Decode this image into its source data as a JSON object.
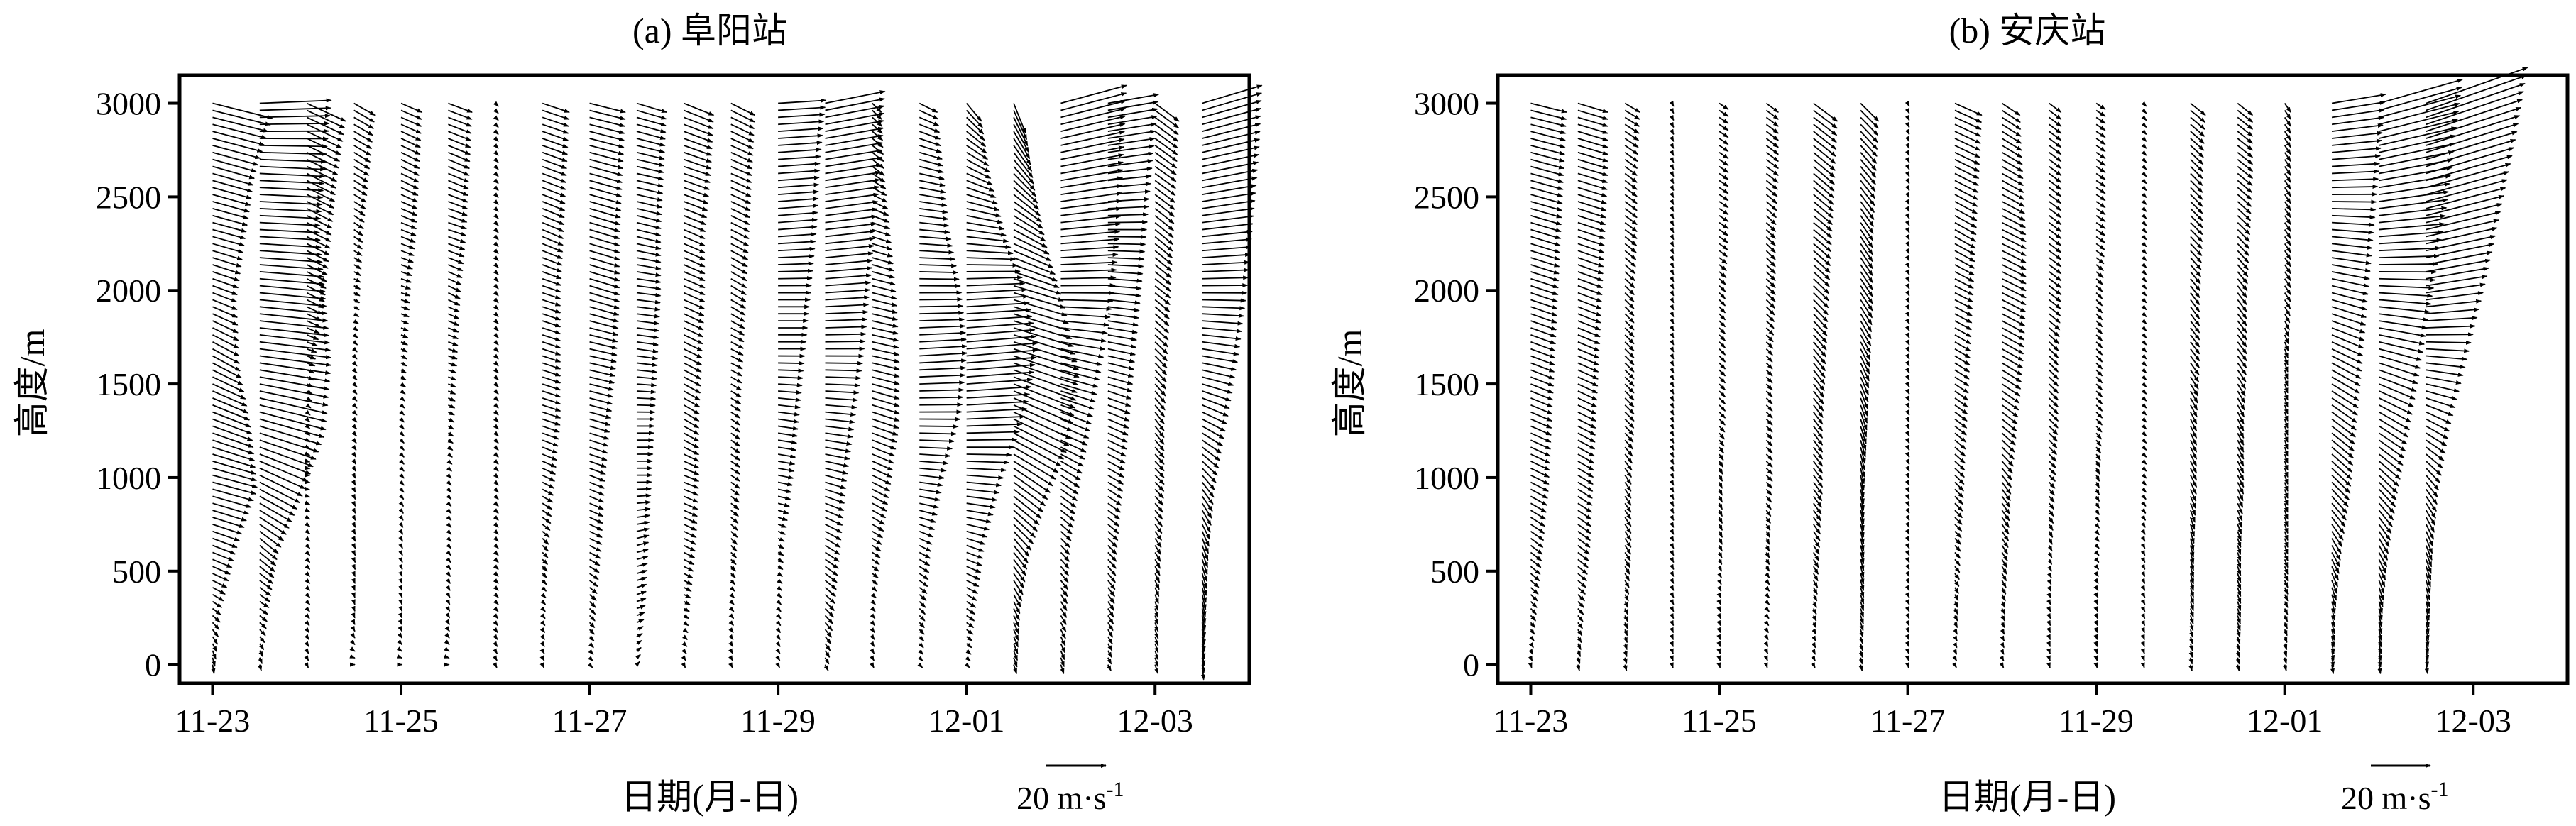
{
  "chart_data": [
    {
      "type": "wind-profile",
      "title": "(a) 阜阳站",
      "xlabel": "日期(月-日)",
      "ylabel": "高度/m",
      "ylim": [
        -100,
        3150
      ],
      "xlim": [
        -0.35,
        11.0
      ],
      "yticks": [
        0,
        500,
        1000,
        1500,
        2000,
        2500,
        3000
      ],
      "xticks": [
        "11-23",
        "11-25",
        "11-27",
        "11-29",
        "12-01",
        "12-03"
      ],
      "xtick_days": [
        0,
        2,
        4,
        6,
        8,
        10
      ],
      "grid": false,
      "reference_vector": {
        "label": "20 m·s",
        "exponent": "-1",
        "speed": 20
      },
      "profiles": [
        {
          "day": 0.0,
          "top": 3000,
          "u": [
            0.5,
            3,
            8,
            15,
            13,
            9,
            8,
            11,
            14,
            20
          ],
          "v": [
            -3,
            -2,
            -3,
            -4,
            -5,
            -5,
            -3,
            -3,
            -4,
            -5
          ]
        },
        {
          "day": 0.5,
          "top": 3000,
          "u": [
            0.5,
            3,
            6,
            14,
            22,
            24,
            22,
            20,
            22,
            24
          ],
          "v": [
            -2,
            -2,
            -5,
            -7,
            -6,
            -3,
            -2,
            -1,
            -1,
            1
          ]
        },
        {
          "day": 1.0,
          "top": 3000,
          "u": [
            0.5,
            1,
            1,
            1,
            1,
            3,
            6,
            8,
            10,
            13
          ],
          "v": [
            -1,
            -1,
            -1,
            0,
            -1,
            -1,
            -3,
            -4,
            -5,
            -6
          ]
        },
        {
          "day": 1.5,
          "top": 3000,
          "u": [
            0.3,
            0.3,
            0.5,
            0.5,
            1,
            1,
            2,
            3,
            5,
            7
          ],
          "v": [
            0,
            -1,
            -1,
            -1,
            -1,
            -1,
            -1,
            -2,
            -3,
            -4
          ]
        },
        {
          "day": 2.0,
          "top": 3000,
          "u": [
            0.3,
            0.3,
            0.5,
            1,
            1,
            2,
            3,
            5,
            6,
            7
          ],
          "v": [
            0,
            -1,
            -1,
            -1,
            -1,
            -1,
            -1,
            -2,
            -3,
            -3
          ]
        },
        {
          "day": 2.5,
          "top": 3000,
          "u": [
            0.3,
            0.5,
            1,
            1,
            2,
            3,
            4,
            6,
            7,
            8
          ],
          "v": [
            0,
            -1,
            -1,
            -1,
            -1,
            -1,
            -2,
            -2,
            -3,
            -3
          ]
        },
        {
          "day": 3.0,
          "top": 3000,
          "u": [
            0.5,
            1,
            1,
            1,
            1,
            1,
            1,
            1,
            1,
            1
          ],
          "v": [
            -1,
            -1,
            -1,
            -1,
            -1,
            -1,
            -1,
            -1,
            -1,
            -1
          ]
        },
        {
          "day": 3.5,
          "top": 3000,
          "u": [
            0.5,
            1,
            2,
            4,
            6,
            6,
            6,
            7,
            8,
            9
          ],
          "v": [
            -1,
            -1,
            -2,
            -2,
            -2,
            -2,
            -2,
            -3,
            -3,
            -3
          ]
        },
        {
          "day": 4.0,
          "top": 3000,
          "u": [
            1,
            2,
            4,
            5,
            7,
            9,
            10,
            10,
            11,
            12
          ],
          "v": [
            -1,
            -2,
            -2,
            -2,
            -2,
            -2,
            -3,
            -3,
            -3,
            -3
          ]
        },
        {
          "day": 4.5,
          "top": 3000,
          "u": [
            1,
            3,
            4,
            5,
            6,
            7,
            8,
            8,
            9,
            10
          ],
          "v": [
            1,
            1,
            1,
            0,
            0,
            -1,
            -1,
            -2,
            -2,
            -3
          ]
        },
        {
          "day": 5.0,
          "top": 3000,
          "u": [
            0.5,
            2,
            4,
            5,
            5,
            6,
            7,
            7,
            9,
            10
          ],
          "v": [
            -1,
            -1,
            -2,
            -2,
            -3,
            -3,
            -3,
            -3,
            -3,
            -4
          ]
        },
        {
          "day": 5.5,
          "top": 3000,
          "u": [
            0.5,
            1,
            2,
            3,
            3,
            4,
            5,
            6,
            7,
            8
          ],
          "v": [
            -1,
            -1,
            -2,
            -2,
            -2,
            -2,
            -3,
            -3,
            -3,
            -4
          ]
        },
        {
          "day": 6.0,
          "top": 3000,
          "u": [
            0.5,
            1,
            2,
            5,
            7,
            9,
            11,
            13,
            14,
            16
          ],
          "v": [
            -1,
            -1,
            -1,
            -1,
            -1,
            0,
            0,
            1,
            1,
            1
          ]
        },
        {
          "day": 6.5,
          "top": 3000,
          "u": [
            1,
            3,
            5,
            7,
            10,
            13,
            15,
            17,
            19,
            20
          ],
          "v": [
            -2,
            -3,
            -3,
            -2,
            -1,
            0,
            1,
            2,
            3,
            4
          ]
        },
        {
          "day": 7.0,
          "top": 3000,
          "u": [
            0.5,
            1,
            3,
            6,
            9,
            9,
            8,
            6,
            4,
            3
          ],
          "v": [
            -1,
            -1,
            -2,
            -3,
            -3,
            -2,
            -2,
            -2,
            -3,
            -3
          ]
        },
        {
          "day": 7.5,
          "top": 3000,
          "u": [
            1,
            2,
            4,
            8,
            14,
            16,
            14,
            10,
            8,
            6
          ],
          "v": [
            -1,
            -2,
            -2,
            -1,
            0,
            1,
            0,
            -1,
            -2,
            -3
          ]
        },
        {
          "day": 8.0,
          "top": 3000,
          "u": [
            1,
            3,
            6,
            12,
            20,
            24,
            20,
            13,
            8,
            5
          ],
          "v": [
            -1,
            -2,
            -2,
            -1,
            1,
            2,
            1,
            -2,
            -4,
            -6
          ]
        },
        {
          "day": 8.5,
          "top": 3000,
          "u": [
            1,
            2,
            5,
            11,
            19,
            22,
            17,
            11,
            7,
            4
          ],
          "v": [
            -3,
            -4,
            -6,
            -8,
            -9,
            -7,
            -5,
            -6,
            -8,
            -10
          ]
        },
        {
          "day": 9.0,
          "top": 3000,
          "u": [
            1,
            2,
            3,
            6,
            10,
            14,
            18,
            20,
            21,
            22
          ],
          "v": [
            -3,
            -3,
            -3,
            -4,
            -4,
            -3,
            0,
            2,
            4,
            6
          ]
        },
        {
          "day": 9.5,
          "top": 3000,
          "u": [
            1,
            2,
            3,
            5,
            7,
            9,
            11,
            13,
            15,
            17
          ],
          "v": [
            -2,
            -3,
            -3,
            -3,
            -3,
            -2,
            -1,
            0,
            2,
            3
          ]
        },
        {
          "day": 10.0,
          "top": 3000,
          "u": [
            1,
            1,
            2,
            3,
            3,
            4,
            5,
            6,
            7,
            8
          ],
          "v": [
            -3,
            -3,
            -3,
            -3,
            -4,
            -4,
            -4,
            -5,
            -5,
            -6
          ]
        },
        {
          "day": 10.5,
          "top": 3000,
          "u": [
            0.5,
            1,
            2,
            4,
            8,
            12,
            15,
            17,
            19,
            20
          ],
          "v": [
            -5,
            -5,
            -5,
            -5,
            -4,
            -2,
            0,
            2,
            4,
            6
          ]
        }
      ]
    },
    {
      "type": "wind-profile",
      "title": "(b) 安庆站",
      "xlabel": "日期(月-日)",
      "ylabel": "高度/m",
      "ylim": [
        -100,
        3150
      ],
      "xlim": [
        -0.35,
        11.0
      ],
      "yticks": [
        0,
        500,
        1000,
        1500,
        2000,
        2500,
        3000
      ],
      "xticks": [
        "11-23",
        "11-25",
        "11-27",
        "11-29",
        "12-01",
        "12-03"
      ],
      "xtick_days": [
        0,
        2,
        4,
        6,
        8,
        10
      ],
      "grid": false,
      "reference_vector": {
        "label": "20 m·s",
        "exponent": "-1",
        "speed": 20
      },
      "profiles": [
        {
          "day": 0.0,
          "top": 3000,
          "u": [
            0.3,
            2,
            4,
            6,
            7,
            8,
            9,
            10,
            11,
            12
          ],
          "v": [
            -1,
            -2,
            -3,
            -3,
            -3,
            -3,
            -3,
            -3,
            -3,
            -3
          ]
        },
        {
          "day": 0.5,
          "top": 3000,
          "u": [
            0.5,
            2,
            4,
            5,
            6,
            7,
            8,
            9,
            10,
            10
          ],
          "v": [
            -2,
            -2,
            -3,
            -3,
            -3,
            -3,
            -3,
            -3,
            -3,
            -3
          ]
        },
        {
          "day": 1.0,
          "top": 3000,
          "u": [
            0.5,
            1,
            2,
            2,
            3,
            3,
            3,
            4,
            4,
            5
          ],
          "v": [
            -2,
            -2,
            -3,
            -3,
            -3,
            -3,
            -3,
            -3,
            -3,
            -3
          ]
        },
        {
          "day": 1.5,
          "top": 3000,
          "u": [
            0.3,
            0.5,
            0.5,
            0.5,
            0.5,
            0.5,
            0.5,
            0.5,
            0.5,
            0.5
          ],
          "v": [
            -1,
            -1,
            -1,
            -1,
            -1,
            -1,
            -1,
            -1,
            -1,
            -1
          ]
        },
        {
          "day": 2.0,
          "top": 3000,
          "u": [
            0.3,
            0.5,
            1,
            1,
            2,
            2,
            2,
            3,
            3,
            3
          ],
          "v": [
            -1,
            -1,
            -2,
            -2,
            -2,
            -2,
            -2,
            -2,
            -2,
            -2
          ]
        },
        {
          "day": 2.5,
          "top": 3000,
          "u": [
            0.3,
            1,
            1,
            2,
            2,
            2,
            3,
            3,
            4,
            4
          ],
          "v": [
            -1,
            -1,
            -2,
            -2,
            -2,
            -2,
            -3,
            -3,
            -3,
            -3
          ]
        },
        {
          "day": 3.0,
          "top": 3000,
          "u": [
            0.5,
            1,
            2,
            3,
            3,
            4,
            5,
            6,
            7,
            8
          ],
          "v": [
            -1,
            -2,
            -3,
            -4,
            -4,
            -5,
            -5,
            -5,
            -6,
            -6
          ]
        },
        {
          "day": 3.5,
          "top": 3000,
          "u": [
            0.5,
            1,
            1,
            1,
            2,
            3,
            4,
            4,
            5,
            6
          ],
          "v": [
            -2,
            -3,
            -4,
            -5,
            -6,
            -6,
            -6,
            -6,
            -6,
            -6
          ]
        },
        {
          "day": 4.0,
          "top": 3000,
          "u": [
            0.3,
            0.5,
            0.5,
            0.5,
            0.5,
            0.5,
            0.5,
            0.5,
            0.5,
            0.5
          ],
          "v": [
            -1,
            -1,
            -1,
            -1,
            -1,
            -1,
            -1,
            -1,
            -1,
            -1
          ]
        },
        {
          "day": 4.5,
          "top": 3000,
          "u": [
            0.5,
            1,
            2,
            3,
            4,
            5,
            6,
            7,
            8,
            9
          ],
          "v": [
            -1,
            -2,
            -2,
            -3,
            -3,
            -3,
            -3,
            -4,
            -4,
            -4
          ]
        },
        {
          "day": 5.0,
          "top": 3000,
          "u": [
            0.5,
            1,
            2,
            3,
            5,
            7,
            8,
            8,
            7,
            6
          ],
          "v": [
            -1,
            -2,
            -3,
            -4,
            -4,
            -4,
            -4,
            -4,
            -4,
            -4
          ]
        },
        {
          "day": 5.5,
          "top": 3000,
          "u": [
            0.3,
            0.5,
            1,
            2,
            3,
            3,
            4,
            4,
            4,
            4
          ],
          "v": [
            -1,
            -1,
            -2,
            -2,
            -3,
            -3,
            -3,
            -3,
            -3,
            -3
          ]
        },
        {
          "day": 6.0,
          "top": 3000,
          "u": [
            0.3,
            0.5,
            1,
            1,
            2,
            2,
            2,
            3,
            3,
            3
          ],
          "v": [
            -1,
            -1,
            -1,
            -2,
            -2,
            -2,
            -2,
            -2,
            -2,
            -2
          ]
        },
        {
          "day": 6.5,
          "top": 3000,
          "u": [
            0.3,
            0.5,
            0.5,
            1,
            1,
            1,
            1,
            1,
            1,
            1
          ],
          "v": [
            -1,
            -1,
            -1,
            -1,
            -1,
            -1,
            -1,
            -1,
            -1,
            -1
          ]
        },
        {
          "day": 7.0,
          "top": 3000,
          "u": [
            0.5,
            1,
            1,
            2,
            2,
            3,
            3,
            4,
            4,
            5
          ],
          "v": [
            -2,
            -3,
            -4,
            -4,
            -4,
            -4,
            -4,
            -4,
            -4,
            -4
          ]
        },
        {
          "day": 7.5,
          "top": 3000,
          "u": [
            0.5,
            1,
            1,
            2,
            2,
            3,
            3,
            4,
            5,
            5
          ],
          "v": [
            -2,
            -3,
            -3,
            -4,
            -4,
            -4,
            -4,
            -4,
            -4,
            -4
          ]
        },
        {
          "day": 8.0,
          "top": 3000,
          "u": [
            0.5,
            1,
            1,
            1,
            1,
            1,
            2,
            2,
            2,
            2
          ],
          "v": [
            -2,
            -2,
            -3,
            -3,
            -3,
            -3,
            -3,
            -3,
            -3,
            -3
          ]
        },
        {
          "day": 8.5,
          "top": 3000,
          "u": [
            0.5,
            1,
            3,
            6,
            8,
            10,
            12,
            14,
            16,
            18
          ],
          "v": [
            -3,
            -4,
            -5,
            -6,
            -6,
            -5,
            -3,
            -1,
            1,
            3
          ]
        },
        {
          "day": 9.0,
          "top": 3000,
          "u": [
            0.5,
            1,
            3,
            6,
            10,
            14,
            18,
            22,
            25,
            28
          ],
          "v": [
            -3,
            -4,
            -5,
            -6,
            -6,
            -4,
            -1,
            2,
            5,
            8
          ]
        },
        {
          "day": 9.5,
          "top": 3000,
          "u": [
            0.5,
            1,
            2,
            4,
            8,
            14,
            20,
            25,
            30,
            34
          ],
          "v": [
            -3,
            -4,
            -5,
            -5,
            -4,
            -1,
            3,
            6,
            9,
            12
          ]
        }
      ]
    }
  ]
}
